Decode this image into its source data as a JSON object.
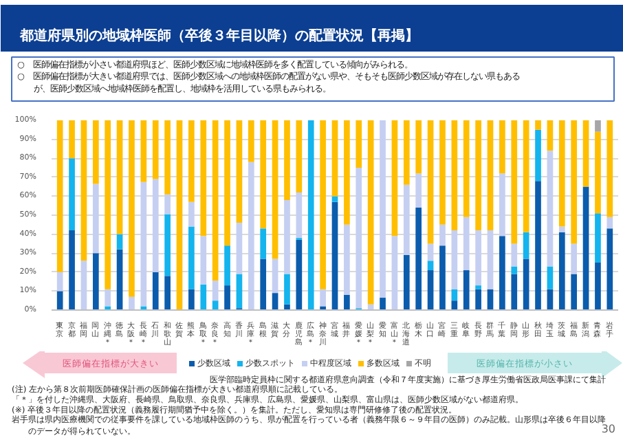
{
  "chart_data": {
    "type": "bar",
    "stacked": true,
    "title": "都道府県別の地域枠医師（卒後３年目以降）の配置状況【再掲】",
    "categories": [
      "東京",
      "京都",
      "福岡",
      "岡山",
      "沖縄＊",
      "徳島",
      "大阪＊",
      "長崎＊",
      "石川",
      "和歌山",
      "佐賀",
      "熊本",
      "鳥取＊",
      "奈良＊",
      "高知",
      "香川",
      "兵庫＊",
      "島根",
      "滋賀",
      "大分",
      "鹿児島",
      "広島＊",
      "神奈川",
      "宮城",
      "福井",
      "愛媛＊",
      "山梨＊",
      "愛知",
      "富山＊",
      "北海道",
      "栃木",
      "山口",
      "宮崎",
      "三重",
      "岐阜",
      "長野",
      "群馬",
      "千葉",
      "静岡",
      "山形",
      "秋田",
      "埼玉",
      "茨城",
      "福島",
      "新潟",
      "青森",
      "岩手"
    ],
    "series": [
      {
        "name": "少数区域",
        "color": "#0b5cad",
        "values": [
          10,
          42,
          0,
          30,
          0,
          32,
          0,
          0,
          20,
          18,
          0,
          11,
          0,
          0,
          13,
          1,
          0,
          27,
          9,
          3,
          37,
          0,
          2,
          57,
          8,
          0,
          0,
          6.5,
          0,
          29,
          54,
          21,
          34,
          5,
          21,
          11,
          11,
          39,
          19,
          27,
          68,
          11,
          41,
          19,
          65,
          25,
          43
        ]
      },
      {
        "name": "少数スポット",
        "color": "#14b4ee",
        "values": [
          0,
          38,
          0,
          0,
          2,
          8,
          0,
          2,
          0,
          32.5,
          0,
          33,
          13.5,
          5,
          21,
          18,
          0,
          16,
          0,
          16,
          1,
          100,
          0,
          3,
          0,
          1,
          0,
          0,
          0,
          0,
          0,
          5,
          0,
          6,
          0,
          2,
          0,
          0,
          4,
          14,
          27,
          12,
          0,
          0,
          0,
          26,
          0
        ]
      },
      {
        "name": "中程度区域",
        "color": "#c5cff2",
        "values": [
          10,
          0,
          26,
          36.5,
          9,
          0,
          7,
          65.5,
          49,
          10.5,
          0,
          13,
          25.5,
          10.5,
          0,
          27,
          78,
          0,
          18,
          39,
          24,
          0,
          9,
          0,
          37,
          74,
          3,
          93.5,
          39,
          37,
          18,
          9,
          11,
          31,
          28,
          29,
          31,
          33,
          12,
          0,
          0,
          61,
          3,
          16,
          0,
          0,
          6
        ]
      },
      {
        "name": "多数区域",
        "color": "#ffbf00",
        "values": [
          80,
          20,
          74,
          33.5,
          89,
          60,
          93,
          32.5,
          31,
          39,
          100,
          43,
          61,
          84.5,
          66,
          54,
          22,
          57,
          73,
          42,
          38,
          0,
          89,
          40,
          55,
          25,
          97,
          0,
          61,
          34,
          28,
          65,
          55,
          58,
          51,
          58,
          58,
          28,
          65,
          59,
          5,
          16,
          56,
          65,
          35,
          43,
          51
        ]
      },
      {
        "name": "不明",
        "color": "#a6a6a6",
        "values": [
          0,
          0,
          0,
          0,
          0,
          0,
          0,
          0,
          0,
          0,
          0,
          0,
          0,
          0,
          0,
          0,
          0,
          0,
          0,
          0,
          0,
          0,
          0,
          0,
          0,
          0,
          0,
          0,
          0,
          0,
          0,
          0,
          0,
          0,
          0,
          0,
          0,
          0,
          0,
          0,
          0,
          0,
          0,
          0,
          0,
          6,
          0
        ]
      }
    ],
    "ylim": [
      0,
      100
    ],
    "yticks": [
      {
        "value": 0,
        "label": "0%"
      },
      {
        "value": 10,
        "label": "10%"
      },
      {
        "value": 20,
        "label": "20%"
      },
      {
        "value": 30,
        "label": "30%"
      },
      {
        "value": 40,
        "label": "40%"
      },
      {
        "value": 50,
        "label": "50%"
      },
      {
        "value": 60,
        "label": "60%"
      },
      {
        "value": 70,
        "label": "70%"
      },
      {
        "value": 80,
        "label": "80%"
      },
      {
        "value": 90,
        "label": "90%"
      },
      {
        "value": 100,
        "label": "100%"
      }
    ],
    "grid": "y",
    "legend": "bottom",
    "annotations": [
      "○　医師偏在指標が小さい都道府県ほど、医師少数区域に地域枠医師を多く配置している傾向がみられる。",
      "○　医師偏在指標が大きい都道府県では、医師少数区域への地域枠医師の配置がない県や、そもそも医師少数区域が存在しない県もあるが、医師少数区域へ地域枠医師を配置し、地域枠を活用している県もみられる。",
      "医師偏在指標が大きい",
      "医師偏在指標が小さい",
      "医学部臨時定員枠に関する都道府県意向調査（令和７年度実施）に基づき厚生労働省医政局医事課にて集計",
      "(注) 左から第８次前期医師確保計画の医師偏在指標が大きい都道府県順に記載している。",
      "「＊」を付した沖縄県、大阪府、長崎県、鳥取県、奈良県、兵庫県、広島県、愛媛県、山梨県、富山県は、医師少数区域がない都道府県。",
      "(※) 卒後３年目以降の配置状況（義務履行期間猶予中を除く。）を集計。ただし、愛知県は専門研修修了後の配置状況。",
      "岩手県は県内医療機関での従事要件を課している地域枠医師のうち、県が配置を行っている者（義務年限６～９年目の医師）のみ記載。山形県は卒後６年目以降のデータが得られていない。",
      "30"
    ]
  }
}
